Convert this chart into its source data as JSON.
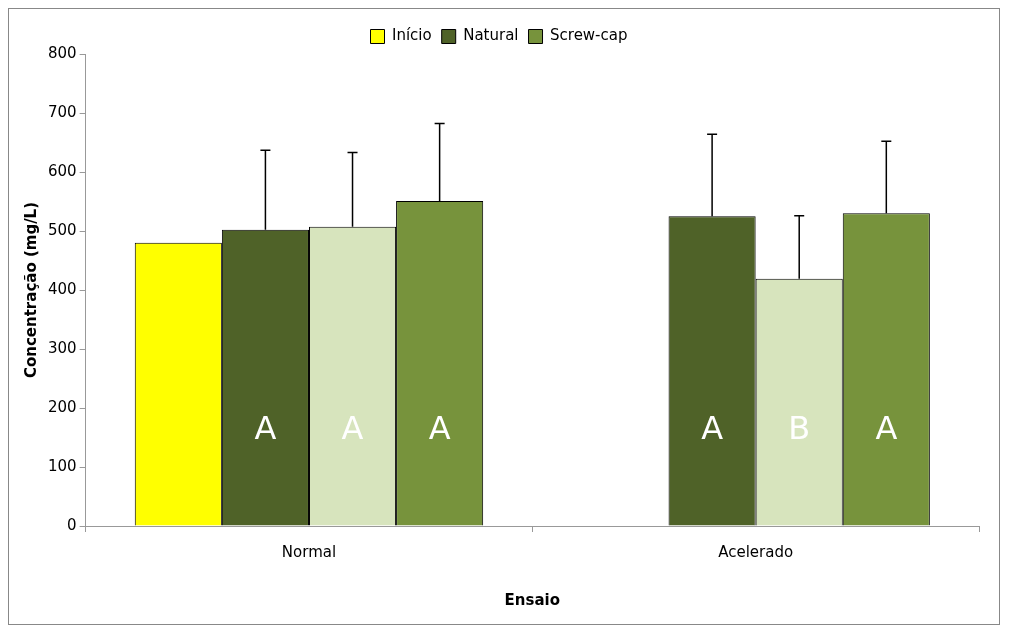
{
  "chart_data": {
    "type": "bar",
    "xlabel": "Ensaio",
    "ylabel": "Concentração (mg/L)",
    "categories": [
      "Normal",
      "Acelerado"
    ],
    "series": [
      {
        "name": "Início",
        "color": "#ffff00",
        "values": [
          480,
          null
        ]
      },
      {
        "name": "Natural",
        "color": "#4f6228",
        "values": [
          502,
          525
        ],
        "errors": [
          [
            502,
            637
          ],
          [
            525,
            664
          ]
        ],
        "value_labels": [
          "A",
          "A"
        ]
      },
      {
        "color": "#d7e4bd",
        "values": [
          507,
          419
        ],
        "errors": [
          [
            507,
            633
          ],
          [
            419,
            526
          ]
        ],
        "value_labels": [
          "A",
          "B"
        ]
      },
      {
        "name": "Screw-cap",
        "color": "#77933c",
        "values": [
          551,
          530
        ],
        "errors": [
          [
            551,
            682
          ],
          [
            530,
            652
          ]
        ],
        "value_labels": [
          "A",
          "A"
        ]
      }
    ],
    "ylim": [
      0,
      800
    ],
    "yticks": [
      0,
      100,
      200,
      300,
      400,
      500,
      600,
      700,
      800
    ],
    "grid": false,
    "legend": "top"
  }
}
